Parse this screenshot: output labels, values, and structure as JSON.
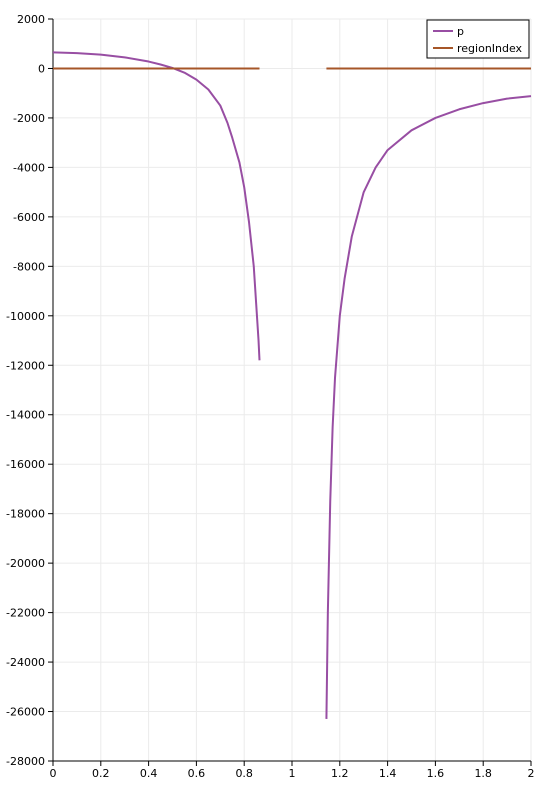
{
  "chart_data": {
    "type": "line",
    "title": "",
    "xlabel": "",
    "ylabel": "",
    "xlim": [
      0,
      2
    ],
    "ylim": [
      -28000,
      2000
    ],
    "x_ticks": [
      0,
      0.2,
      0.4,
      0.6,
      0.8,
      1,
      1.2,
      1.4,
      1.6,
      1.8,
      2
    ],
    "x_tick_labels": [
      "0",
      "0.2",
      "0.4",
      "0.6",
      "0.8",
      "1",
      "1.2",
      "1.4",
      "1.6",
      "1.8",
      "2"
    ],
    "y_ticks": [
      2000,
      0,
      -2000,
      -4000,
      -6000,
      -8000,
      -10000,
      -12000,
      -14000,
      -16000,
      -18000,
      -20000,
      -22000,
      -24000,
      -26000,
      -28000
    ],
    "y_tick_labels": [
      "2000",
      "0",
      "-2000",
      "-4000",
      "-6000",
      "-8000",
      "-10000",
      "-12000",
      "-14000",
      "-16000",
      "-18000",
      "-20000",
      "-22000",
      "-24000",
      "-26000",
      "-28000"
    ],
    "grid": true,
    "legend_position": "top-right",
    "series": [
      {
        "name": "p",
        "color": "#984ea3",
        "segments": [
          [
            [
              0,
              650
            ],
            [
              0.1,
              620
            ],
            [
              0.2,
              560
            ],
            [
              0.3,
              450
            ],
            [
              0.4,
              280
            ],
            [
              0.45,
              160
            ],
            [
              0.5,
              20
            ],
            [
              0.55,
              -170
            ],
            [
              0.6,
              -450
            ],
            [
              0.65,
              -850
            ],
            [
              0.7,
              -1500
            ],
            [
              0.73,
              -2200
            ],
            [
              0.75,
              -2800
            ],
            [
              0.78,
              -3800
            ],
            [
              0.8,
              -4800
            ],
            [
              0.82,
              -6200
            ],
            [
              0.84,
              -8000
            ],
            [
              0.85,
              -9500
            ],
            [
              0.86,
              -11000
            ],
            [
              0.864,
              -11800
            ]
          ],
          [
            [
              1.144,
              -26300
            ],
            [
              1.15,
              -22000
            ],
            [
              1.16,
              -17500
            ],
            [
              1.17,
              -14500
            ],
            [
              1.18,
              -12500
            ],
            [
              1.2,
              -10000
            ],
            [
              1.22,
              -8500
            ],
            [
              1.25,
              -6800
            ],
            [
              1.3,
              -5000
            ],
            [
              1.35,
              -4000
            ],
            [
              1.4,
              -3300
            ],
            [
              1.5,
              -2500
            ],
            [
              1.6,
              -2000
            ],
            [
              1.7,
              -1650
            ],
            [
              1.8,
              -1400
            ],
            [
              1.9,
              -1220
            ],
            [
              2,
              -1120
            ]
          ]
        ]
      },
      {
        "name": "regionIndex",
        "color": "#a65628",
        "segments": [
          [
            [
              0,
              0
            ],
            [
              0.864,
              0
            ]
          ],
          [
            [
              1.144,
              0
            ],
            [
              2,
              0
            ]
          ]
        ]
      }
    ]
  }
}
